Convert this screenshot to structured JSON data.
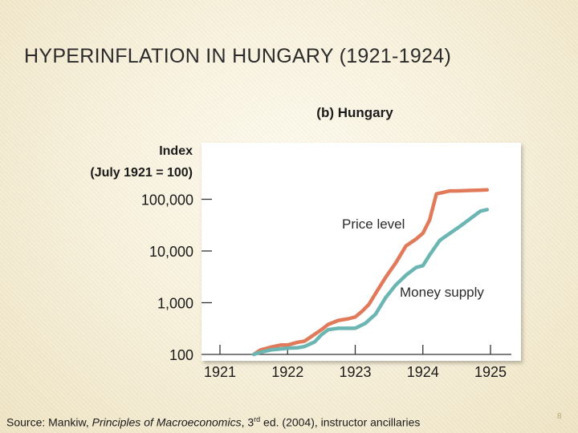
{
  "slide": {
    "title": "HYPERINFLATION IN HUNGARY (1921-1924)",
    "page_number": "8",
    "source": {
      "prefix": "Source: Mankiw, ",
      "book": "Principles of Macroeconomics",
      "sep": ", ",
      "edition_num": "3",
      "edition_suffix": "rd",
      "rest": " ed. (2004), instructor ancillaries"
    }
  },
  "chart_data": {
    "type": "line",
    "panel_title": "(b) Hungary",
    "ylabel_line1": "Index",
    "ylabel_line2": "(July 1921 = 100)",
    "y_scale": "log",
    "ylim": [
      100,
      300000
    ],
    "xlim": [
      1921,
      1925
    ],
    "y_ticks": [
      {
        "value": 100,
        "label": "100"
      },
      {
        "value": 1000,
        "label": "1,000"
      },
      {
        "value": 10000,
        "label": "10,000"
      },
      {
        "value": 100000,
        "label": "100,000"
      }
    ],
    "x_ticks": [
      {
        "value": 1921,
        "label": "1921"
      },
      {
        "value": 1922,
        "label": "1922"
      },
      {
        "value": 1923,
        "label": "1923"
      },
      {
        "value": 1924,
        "label": "1924"
      },
      {
        "value": 1925,
        "label": "1925"
      }
    ],
    "series": [
      {
        "name": "Price level",
        "color": "#e07a5a",
        "x": [
          1921.5,
          1921.6,
          1921.75,
          1921.9,
          1922.0,
          1922.15,
          1922.25,
          1922.4,
          1922.5,
          1922.6,
          1922.75,
          1922.9,
          1923.0,
          1923.1,
          1923.2,
          1923.3,
          1923.45,
          1923.6,
          1923.75,
          1923.9,
          1924.0,
          1924.1,
          1924.2,
          1924.4,
          1924.5,
          1924.7,
          1924.85,
          1924.95
        ],
        "y": [
          100,
          122,
          138,
          152,
          152,
          172,
          180,
          245,
          300,
          380,
          455,
          490,
          530,
          680,
          920,
          1500,
          3100,
          5900,
          12500,
          17000,
          22000,
          40000,
          127000,
          145000,
          145000,
          148000,
          150000,
          152000
        ]
      },
      {
        "name": "Money supply",
        "color": "#6bb6b3",
        "x": [
          1921.5,
          1921.6,
          1921.75,
          1921.9,
          1922.0,
          1922.15,
          1922.25,
          1922.4,
          1922.5,
          1922.6,
          1922.75,
          1922.9,
          1923.0,
          1923.15,
          1923.3,
          1923.45,
          1923.6,
          1923.75,
          1923.9,
          1924.0,
          1924.1,
          1924.25,
          1924.4,
          1924.55,
          1924.7,
          1924.85,
          1924.95
        ],
        "y": [
          100,
          110,
          122,
          128,
          132,
          135,
          142,
          175,
          240,
          300,
          320,
          320,
          320,
          400,
          600,
          1250,
          2200,
          3400,
          4800,
          5200,
          8400,
          16000,
          22000,
          30000,
          42000,
          59000,
          63000
        ]
      }
    ],
    "annotations": [
      {
        "text": "Price level",
        "series": "Price level"
      },
      {
        "text": "Money supply",
        "series": "Money supply"
      }
    ],
    "grid": false
  }
}
